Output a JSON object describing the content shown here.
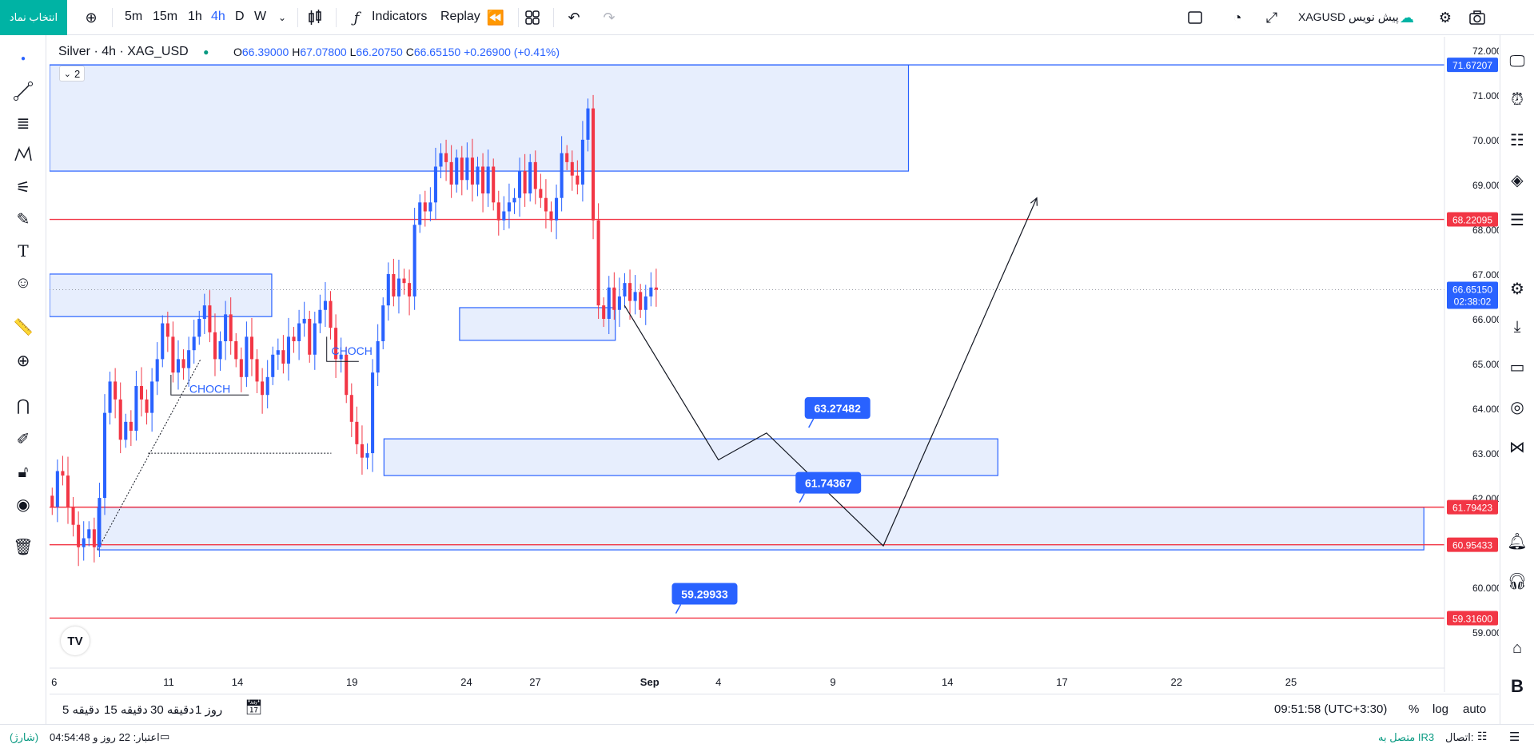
{
  "topbar": {
    "symbol_button": "انتخاب نماد",
    "intervals": [
      "5m",
      "15m",
      "1h",
      "4h",
      "D",
      "W"
    ],
    "active_interval": "4h",
    "indicators_label": "Indicators",
    "replay_label": "Replay",
    "symbol_name": "XAGUSD پیش نویس"
  },
  "header": {
    "title": "Silver · 4h · XAG_USD",
    "ohlc": {
      "o_label": "O",
      "o": "66.39000",
      "h_label": "H",
      "h": "67.07800",
      "l_label": "L",
      "l": "66.20750",
      "c_label": "C",
      "c": "66.65150",
      "change": "+0.26900 (+0.41%)"
    },
    "collapse_count": "2"
  },
  "chart_data": {
    "type": "candlestick",
    "symbol": "XAG_USD",
    "interval": "4h",
    "ylim": [
      58.2,
      72.3
    ],
    "y_ticks": [
      "72.00000",
      "71.00000",
      "70.00000",
      "69.00000",
      "68.00000",
      "67.00000",
      "66.00000",
      "65.00000",
      "64.00000",
      "63.00000",
      "62.00000",
      "60.00000",
      "59.00000"
    ],
    "x_ticks": [
      {
        "label": "6",
        "day": 6
      },
      {
        "label": "11",
        "day": 11
      },
      {
        "label": "14",
        "day": 14
      },
      {
        "label": "19",
        "day": 19
      },
      {
        "label": "24",
        "day": 24
      },
      {
        "label": "27",
        "day": 27
      },
      {
        "label": "Sep",
        "day": 32
      },
      {
        "label": "4",
        "day": 35
      },
      {
        "label": "9",
        "day": 40
      },
      {
        "label": "14",
        "day": 45
      },
      {
        "label": "17",
        "day": 50
      },
      {
        "label": "22",
        "day": 55
      },
      {
        "label": "25",
        "day": 60
      }
    ],
    "x_start_day": 5.8,
    "x_end_day": 66.7,
    "closes": [
      61.8,
      62.6,
      62.5,
      61.8,
      61.4,
      60.9,
      61.1,
      61.3,
      60.9,
      62.0,
      63.9,
      64.6,
      64.2,
      63.3,
      63.7,
      63.5,
      64.5,
      64.2,
      63.9,
      64.6,
      65.1,
      65.9,
      65.6,
      64.8,
      65.1,
      64.9,
      65.3,
      65.6,
      66.0,
      66.3,
      65.7,
      65.1,
      65.5,
      66.1,
      65.5,
      65.1,
      64.7,
      65.6,
      65.1,
      64.6,
      64.3,
      64.7,
      65.2,
      65.3,
      65.0,
      65.6,
      65.5,
      65.9,
      66.0,
      65.2,
      65.9,
      66.2,
      66.4,
      65.8,
      65.1,
      65.2,
      64.3,
      63.7,
      63.2,
      62.9,
      63.0,
      64.8,
      65.5,
      66.3,
      67.0,
      66.5,
      66.9,
      66.8,
      66.5,
      68.1,
      68.6,
      68.4,
      68.6,
      69.4,
      69.7,
      69.5,
      69.0,
      69.6,
      69.1,
      69.6,
      69.0,
      69.4,
      68.8,
      69.4,
      68.6,
      68.2,
      68.4,
      68.6,
      68.7,
      69.3,
      68.8,
      69.5,
      68.9,
      68.7,
      68.4,
      68.2,
      68.7,
      69.7,
      69.5,
      69.2,
      69.0,
      70.0,
      70.7,
      68.2,
      66.3,
      66.0,
      66.7,
      66.2,
      66.5,
      66.8,
      66.4,
      66.6,
      66.2,
      66.5,
      66.7,
      66.65
    ],
    "zones": [
      {
        "from_day": 5.8,
        "to_day": 43.3,
        "top": 71.67,
        "bottom": 69.3
      },
      {
        "from_day": 5.8,
        "to_day": 15.5,
        "top": 67.0,
        "bottom": 66.05
      },
      {
        "from_day": 23.7,
        "to_day": 30.5,
        "top": 66.25,
        "bottom": 65.52
      },
      {
        "from_day": 20.4,
        "to_day": 47.2,
        "top": 63.32,
        "bottom": 62.5
      },
      {
        "from_day": 7.9,
        "to_day": 65.8,
        "top": 61.79,
        "bottom": 60.84
      }
    ],
    "horizontal_levels": [
      {
        "value": "71.67207",
        "color": "#2962ff"
      },
      {
        "value": "68.22095",
        "color": "#f23645"
      },
      {
        "value": "61.79423",
        "color": "#f23645"
      },
      {
        "value": "60.95433",
        "color": "#f23645"
      },
      {
        "value": "59.31600",
        "color": "#f23645"
      }
    ],
    "last_price": {
      "value": "66.65150",
      "countdown": "02:38:02",
      "color": "#2962ff"
    },
    "callouts": [
      {
        "text": "63.27482",
        "day": 40.2,
        "price": 64.0
      },
      {
        "text": "61.74367",
        "day": 39.8,
        "price": 62.33
      },
      {
        "text": "59.29933",
        "day": 34.4,
        "price": 59.85
      }
    ],
    "projection_path": [
      [
        30.9,
        66.3
      ],
      [
        35.0,
        62.85
      ],
      [
        37.1,
        63.45
      ],
      [
        42.2,
        60.93
      ],
      [
        48.9,
        68.7
      ]
    ],
    "annotations": [
      {
        "text": "CHOCH",
        "day": 12.8,
        "price": 64.35
      },
      {
        "text": "CHOCH",
        "day": 19.0,
        "price": 65.2
      }
    ]
  },
  "bottombar": {
    "ranges": [
      "5 دقیقه",
      "15 دقیقه",
      "30 دقیقه",
      "1 روز"
    ],
    "clock": "09:51:58 (UTC+3:30)",
    "percent": "%",
    "log": "log",
    "auto": "auto"
  },
  "statusbar": {
    "credit": "اعتبار: 22 روز و 04:54:48",
    "charge": "(شارژ)",
    "connection": "اتصال:",
    "connection_status": "متصل به IR3"
  },
  "colors": {
    "up": "#2962ff",
    "down": "#f23645",
    "zone_fill": "#e3ebfd",
    "zone_border": "#2962ff",
    "accent": "#00b3a4"
  }
}
